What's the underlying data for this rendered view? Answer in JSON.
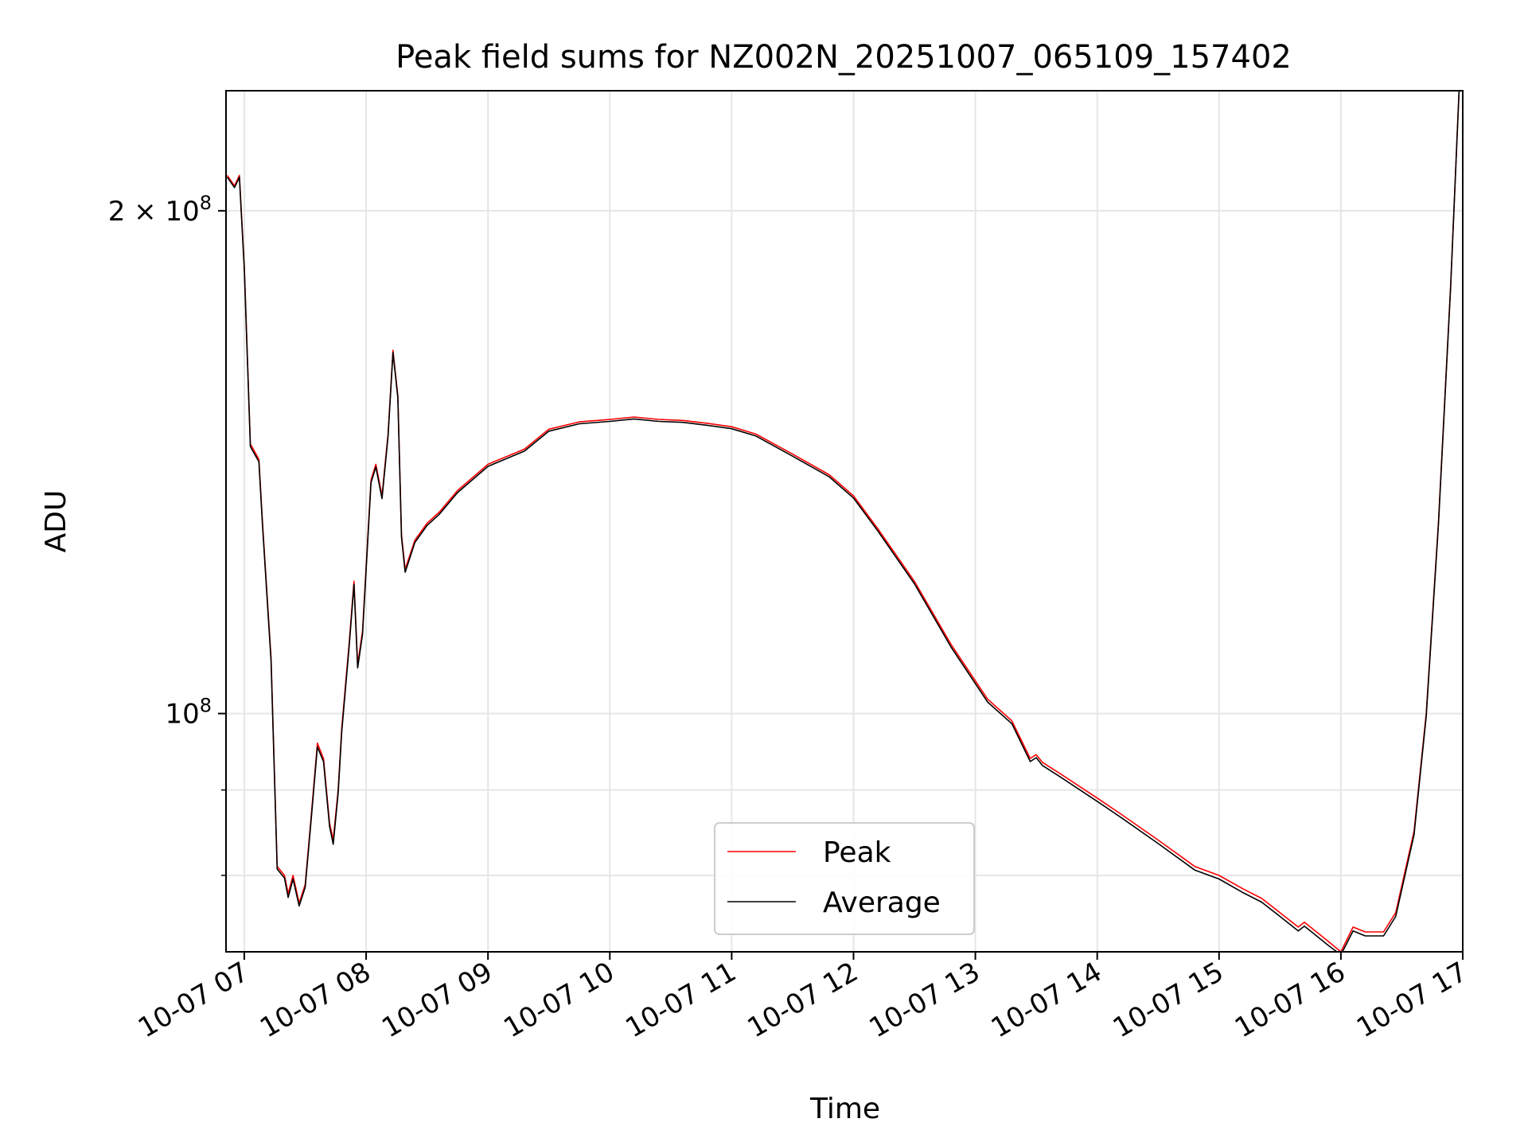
{
  "chart_data": {
    "type": "line",
    "title": "Peak field sums for NZ002N_20251007_065109_157402",
    "xlabel": "Time",
    "ylabel": "ADU",
    "yscale": "log",
    "xlim_hours": [
      6.85,
      17.0
    ],
    "ylim": [
      72000000,
      236000000
    ],
    "grid": true,
    "x_ticks": [
      {
        "label": "10-07 07",
        "hour": 7
      },
      {
        "label": "10-07 08",
        "hour": 8
      },
      {
        "label": "10-07 09",
        "hour": 9
      },
      {
        "label": "10-07 10",
        "hour": 10
      },
      {
        "label": "10-07 11",
        "hour": 11
      },
      {
        "label": "10-07 12",
        "hour": 12
      },
      {
        "label": "10-07 13",
        "hour": 13
      },
      {
        "label": "10-07 14",
        "hour": 14
      },
      {
        "label": "10-07 15",
        "hour": 15
      },
      {
        "label": "10-07 16",
        "hour": 16
      },
      {
        "label": "10-07 17",
        "hour": 17
      }
    ],
    "y_major_ticks": [
      {
        "value": 100000000,
        "base": "10",
        "exp": "8"
      },
      {
        "value": 200000000,
        "base": "2 × 10",
        "exp": "8"
      }
    ],
    "y_minor_ticks": [
      80000000,
      90000000
    ],
    "legend": {
      "location": "bottom-center",
      "entries": [
        "Peak",
        "Average"
      ]
    },
    "series": [
      {
        "name": "Peak",
        "color": "#ff0000",
        "x_hours": [
          6.86,
          6.92,
          6.96,
          7.0,
          7.05,
          7.12,
          7.15,
          7.22,
          7.27,
          7.33,
          7.36,
          7.4,
          7.45,
          7.5,
          7.55,
          7.6,
          7.65,
          7.7,
          7.73,
          7.77,
          7.8,
          7.86,
          7.9,
          7.93,
          7.97,
          8.04,
          8.08,
          8.13,
          8.18,
          8.22,
          8.26,
          8.29,
          8.32,
          8.4,
          8.5,
          8.6,
          8.75,
          9.0,
          9.3,
          9.5,
          9.75,
          10.0,
          10.2,
          10.4,
          10.6,
          10.8,
          11.0,
          11.2,
          11.5,
          11.8,
          12.0,
          12.2,
          12.5,
          12.8,
          13.1,
          13.3,
          13.45,
          13.5,
          13.55,
          13.7,
          14.0,
          14.2,
          14.5,
          14.8,
          15.0,
          15.2,
          15.35,
          15.5,
          15.65,
          15.7,
          15.8,
          15.9,
          16.0,
          16.1,
          16.2,
          16.35,
          16.45,
          16.6,
          16.7,
          16.8,
          16.9,
          16.97,
          17.0
        ],
        "values": [
          210000000,
          207000000,
          210000000,
          185000000,
          145000000,
          142000000,
          130000000,
          108000000,
          81000000,
          80000000,
          78000000,
          80000000,
          77000000,
          79000000,
          87000000,
          96000000,
          94000000,
          86000000,
          84000000,
          90000000,
          98000000,
          110000000,
          120000000,
          107000000,
          112000000,
          138000000,
          141000000,
          135000000,
          147000000,
          165000000,
          155000000,
          128000000,
          122000000,
          127000000,
          130000000,
          132000000,
          136000000,
          141000000,
          144000000,
          148000000,
          149500000,
          150000000,
          150500000,
          150000000,
          149800000,
          149200000,
          148500000,
          147000000,
          143000000,
          139000000,
          135000000,
          129000000,
          120000000,
          110000000,
          102000000,
          99000000,
          94000000,
          94500000,
          93500000,
          92000000,
          89000000,
          87000000,
          84000000,
          81000000,
          80000000,
          78500000,
          77500000,
          76000000,
          74500000,
          75000000,
          74000000,
          73000000,
          72000000,
          74500000,
          74000000,
          74000000,
          76000000,
          85000000,
          100000000,
          130000000,
          180000000,
          236000000,
          236000000
        ]
      },
      {
        "name": "Average",
        "color": "#000000",
        "x_hours": [
          6.86,
          6.92,
          6.96,
          7.0,
          7.05,
          7.12,
          7.15,
          7.22,
          7.27,
          7.33,
          7.36,
          7.4,
          7.45,
          7.5,
          7.55,
          7.6,
          7.65,
          7.7,
          7.73,
          7.77,
          7.8,
          7.86,
          7.9,
          7.93,
          7.97,
          8.04,
          8.08,
          8.13,
          8.18,
          8.22,
          8.26,
          8.29,
          8.32,
          8.4,
          8.5,
          8.6,
          8.75,
          9.0,
          9.3,
          9.5,
          9.75,
          10.0,
          10.2,
          10.4,
          10.6,
          10.8,
          11.0,
          11.2,
          11.5,
          11.8,
          12.0,
          12.2,
          12.5,
          12.8,
          13.1,
          13.3,
          13.45,
          13.5,
          13.55,
          13.7,
          14.0,
          14.2,
          14.5,
          14.8,
          15.0,
          15.2,
          15.35,
          15.5,
          15.65,
          15.7,
          15.8,
          15.9,
          16.0,
          16.1,
          16.2,
          16.35,
          16.45,
          16.6,
          16.7,
          16.8,
          16.9,
          16.97,
          17.0
        ],
        "values": [
          209500000,
          206500000,
          209500000,
          184500000,
          144500000,
          141500000,
          129500000,
          107500000,
          80700000,
          79700000,
          77600000,
          79600000,
          76700000,
          78700000,
          86600000,
          95500000,
          93600000,
          85600000,
          83500000,
          89600000,
          97500000,
          109500000,
          119500000,
          106500000,
          111500000,
          137500000,
          140500000,
          134500000,
          146500000,
          164500000,
          154500000,
          127500000,
          121500000,
          126600000,
          129600000,
          131600000,
          135600000,
          140600000,
          143600000,
          147600000,
          149100000,
          149600000,
          150100000,
          149600000,
          149400000,
          148800000,
          148100000,
          146600000,
          142600000,
          138600000,
          134600000,
          128600000,
          119600000,
          109600000,
          101600000,
          98600000,
          93600000,
          94100000,
          93100000,
          91600000,
          88600000,
          86600000,
          83600000,
          80600000,
          79600000,
          78100000,
          77100000,
          75600000,
          74100000,
          74600000,
          73600000,
          72600000,
          71700000,
          74100000,
          73600000,
          73600000,
          75600000,
          84600000,
          99600000,
          129600000,
          179600000,
          236000000,
          236000000
        ]
      }
    ]
  }
}
